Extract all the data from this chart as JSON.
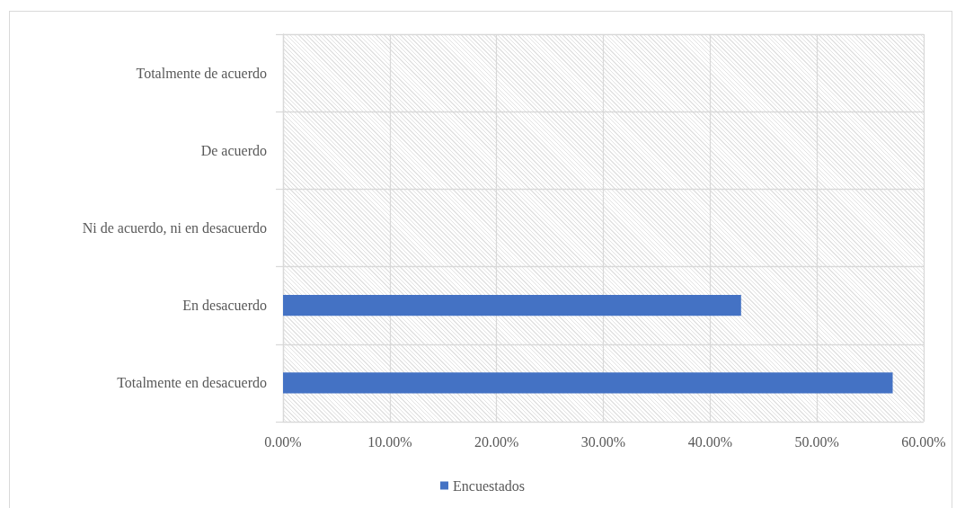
{
  "chart_data": {
    "type": "bar",
    "orientation": "horizontal",
    "categories": [
      "Totalmente de acuerdo",
      "De acuerdo",
      "Ni de acuerdo, ni en desacuerdo",
      "En desacuerdo",
      "Totalmente en desacuerdo"
    ],
    "series": [
      {
        "name": "Encuestados",
        "color": "#4472c4",
        "values": [
          0,
          0,
          0,
          42.9,
          57.1
        ]
      }
    ],
    "xlim": [
      0,
      60
    ],
    "xticks": [
      {
        "value": 0,
        "label": "0.00%"
      },
      {
        "value": 10,
        "label": "10.00%"
      },
      {
        "value": 20,
        "label": "20.00%"
      },
      {
        "value": 30,
        "label": "30.00%"
      },
      {
        "value": 40,
        "label": "40.00%"
      },
      {
        "value": 50,
        "label": "50.00%"
      },
      {
        "value": 60,
        "label": "60.00%"
      }
    ],
    "grid": true,
    "legend": "bottom"
  }
}
